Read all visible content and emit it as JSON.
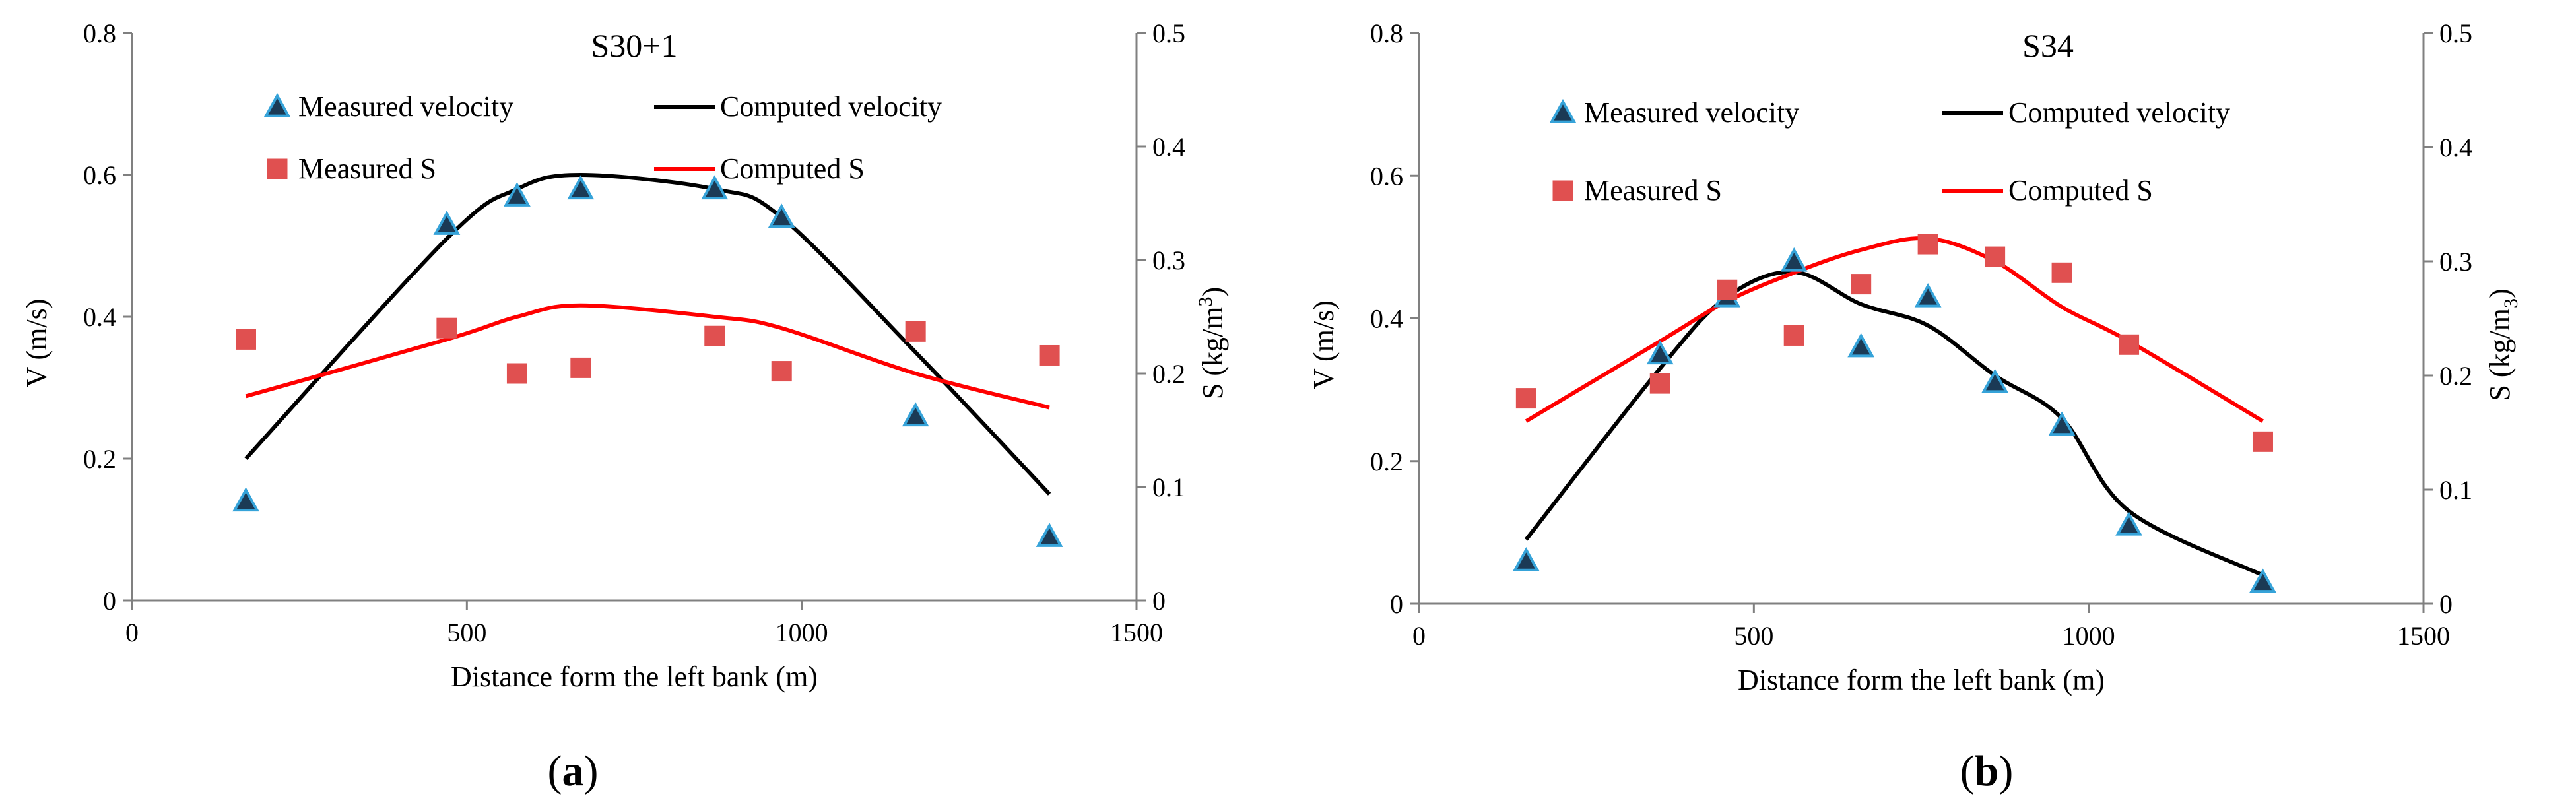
{
  "colors": {
    "velocity_line": "#000000",
    "s_line": "#ff0000",
    "s_marker": "#e05050",
    "velocity_marker_fill": "#1b3a55",
    "velocity_marker_stroke": "#36a3d9",
    "axis": "#808080"
  },
  "legend": {
    "measured_velocity": "Measured velocity",
    "computed_velocity": "Computed velocity",
    "measured_s": "Measured S",
    "computed_s": "Computed S"
  },
  "chart_data": [
    {
      "type": "line",
      "panel_label_open": "(",
      "panel_letter": "a",
      "panel_label_close": ")",
      "title": "S30+1",
      "xlabel": "Distance form the left bank (m)",
      "ylabel_left": "V (m/s)",
      "ylabel_right_base": "S (kg/m",
      "ylabel_right_sup": "3",
      "ylabel_right_sub": "",
      "ylabel_right_end": ")",
      "xlim": [
        0,
        1500
      ],
      "ylim_left": [
        0,
        0.8
      ],
      "ylim_right": [
        0,
        0.5
      ],
      "x_ticks": [
        "0",
        "500",
        "1000",
        "1500"
      ],
      "y_left_ticks": [
        "0",
        "0.2",
        "0.4",
        "0.6",
        "0.8"
      ],
      "y_right_ticks": [
        "0",
        "0.1",
        "0.2",
        "0.3",
        "0.4",
        "0.5"
      ],
      "series": [
        {
          "name": "Measured velocity",
          "kind": "marker-triangle",
          "axis": "left",
          "x": [
            170,
            470,
            575,
            670,
            870,
            970,
            1170,
            1370
          ],
          "y": [
            0.14,
            0.53,
            0.57,
            0.58,
            0.58,
            0.54,
            0.26,
            0.09
          ]
        },
        {
          "name": "Computed velocity",
          "kind": "line",
          "axis": "left",
          "x": [
            170,
            470,
            575,
            670,
            870,
            970,
            1170,
            1370
          ],
          "y": [
            0.2,
            0.51,
            0.58,
            0.6,
            0.58,
            0.54,
            0.35,
            0.15
          ]
        },
        {
          "name": "Measured S",
          "kind": "marker-square",
          "axis": "right",
          "x": [
            170,
            470,
            575,
            670,
            870,
            970,
            1170,
            1370
          ],
          "y": [
            0.23,
            0.24,
            0.2,
            0.205,
            0.233,
            0.202,
            0.237,
            0.216
          ]
        },
        {
          "name": "Computed S",
          "kind": "line",
          "axis": "right",
          "x": [
            170,
            470,
            575,
            670,
            870,
            970,
            1170,
            1370
          ],
          "y": [
            0.18,
            0.23,
            0.25,
            0.26,
            0.25,
            0.24,
            0.2,
            0.17
          ]
        }
      ]
    },
    {
      "type": "line",
      "panel_label_open": "(",
      "panel_letter": "b",
      "panel_label_close": ")",
      "title": "S34",
      "xlabel": "Distance form the left bank (m)",
      "ylabel_left": "V (m/s)",
      "ylabel_right_base": "S (kg/m",
      "ylabel_right_sup": "",
      "ylabel_right_sub": "3",
      "ylabel_right_end": ")",
      "xlim": [
        0,
        1500
      ],
      "ylim_left": [
        0,
        0.8
      ],
      "ylim_right": [
        0,
        0.5
      ],
      "x_ticks": [
        "0",
        "500",
        "1000",
        "1500"
      ],
      "y_left_ticks": [
        "0",
        "0.2",
        "0.4",
        "0.6",
        "0.8"
      ],
      "y_right_ticks": [
        "0",
        "0.1",
        "0.2",
        "0.3",
        "0.4",
        "0.5"
      ],
      "series": [
        {
          "name": "Measured velocity",
          "kind": "marker-triangle",
          "axis": "left",
          "x": [
            160,
            360,
            460,
            560,
            660,
            760,
            860,
            960,
            1060,
            1260
          ],
          "y": [
            0.06,
            0.35,
            0.43,
            0.48,
            0.36,
            0.43,
            0.31,
            0.25,
            0.11,
            0.03
          ]
        },
        {
          "name": "Computed velocity",
          "kind": "line",
          "axis": "left",
          "x": [
            160,
            360,
            460,
            560,
            660,
            760,
            860,
            960,
            1060,
            1260
          ],
          "y": [
            0.09,
            0.33,
            0.43,
            0.465,
            0.42,
            0.39,
            0.32,
            0.26,
            0.13,
            0.04
          ]
        },
        {
          "name": "Measured S",
          "kind": "marker-square",
          "axis": "right",
          "x": [
            160,
            360,
            460,
            560,
            660,
            760,
            860,
            960,
            1060,
            1260
          ],
          "y": [
            0.18,
            0.193,
            0.275,
            0.235,
            0.28,
            0.315,
            0.304,
            0.29,
            0.227,
            0.142
          ]
        },
        {
          "name": "Computed S",
          "kind": "line",
          "axis": "right",
          "x": [
            160,
            360,
            460,
            560,
            660,
            760,
            860,
            960,
            1060,
            1260
          ],
          "y": [
            0.16,
            0.23,
            0.265,
            0.29,
            0.31,
            0.32,
            0.3,
            0.26,
            0.23,
            0.16
          ]
        }
      ]
    }
  ]
}
